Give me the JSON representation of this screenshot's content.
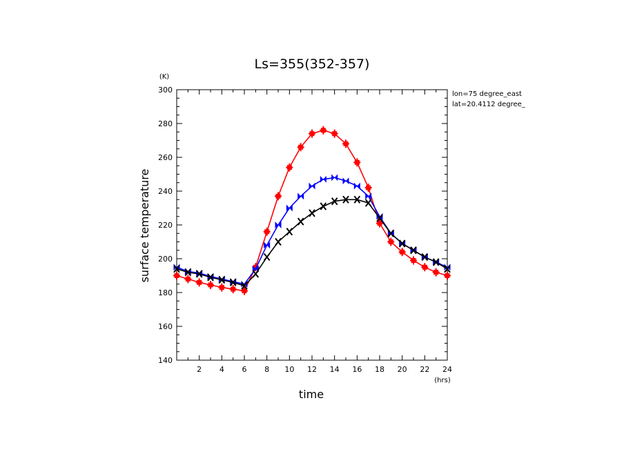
{
  "chart_data": {
    "type": "line",
    "title": "Ls=355(352-357)",
    "xlabel": "time",
    "ylabel": "surface temperature",
    "x_unit": "(hrs)",
    "y_unit": "(K)",
    "xlim": [
      0,
      24
    ],
    "ylim": [
      140,
      300
    ],
    "x_ticks": [
      "2",
      "4",
      "6",
      "8",
      "10",
      "12",
      "14",
      "16",
      "18",
      "20",
      "22",
      "24"
    ],
    "y_ticks": [
      "140",
      "160",
      "180",
      "200",
      "220",
      "240",
      "260",
      "280",
      "300"
    ],
    "annotations": [
      "lon=75 degree_east",
      "lat=20.4112 degree_"
    ],
    "grid": false,
    "x": [
      0,
      1,
      2,
      3,
      4,
      5,
      6,
      7,
      8,
      9,
      10,
      11,
      12,
      13,
      14,
      15,
      16,
      17,
      18,
      19,
      20,
      21,
      22,
      23,
      24
    ],
    "series": [
      {
        "color": "#ff0000",
        "marker": "plus-square",
        "values": [
          190,
          188,
          186,
          184.5,
          183,
          182,
          181,
          195,
          216,
          237,
          254,
          266,
          274,
          276,
          274,
          268,
          257,
          242,
          221,
          210,
          204,
          199,
          195,
          192,
          190
        ]
      },
      {
        "color": "#0000ff",
        "marker": "bowtie",
        "values": [
          195,
          192.5,
          191.5,
          189.5,
          188,
          186.5,
          185,
          194,
          208,
          220,
          230,
          237,
          243,
          247,
          248,
          246,
          243,
          237,
          225,
          215,
          209,
          205,
          201,
          198,
          195
        ]
      },
      {
        "color": "#000000",
        "marker": "x",
        "values": [
          194,
          192,
          191,
          189,
          187.5,
          186,
          184,
          191,
          201,
          210,
          216,
          222,
          227,
          231,
          234,
          235,
          235,
          233,
          224,
          215,
          209,
          205,
          201,
          198,
          194
        ]
      }
    ]
  }
}
